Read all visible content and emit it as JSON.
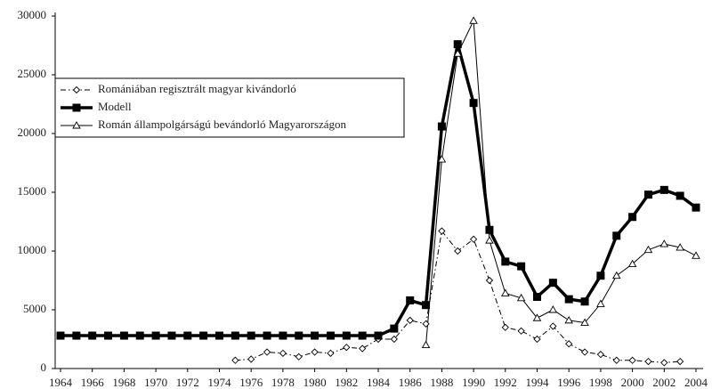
{
  "chart_data": {
    "type": "line",
    "x": [
      1964,
      1965,
      1966,
      1967,
      1968,
      1969,
      1970,
      1971,
      1972,
      1973,
      1974,
      1975,
      1976,
      1977,
      1978,
      1979,
      1980,
      1981,
      1982,
      1983,
      1984,
      1985,
      1986,
      1987,
      1988,
      1989,
      1990,
      1991,
      1992,
      1993,
      1994,
      1995,
      1996,
      1997,
      1998,
      1999,
      2000,
      2001,
      2002,
      2003,
      2004
    ],
    "xticks": [
      1964,
      1966,
      1968,
      1970,
      1972,
      1974,
      1976,
      1978,
      1980,
      1982,
      1984,
      1986,
      1988,
      1990,
      1992,
      1994,
      1996,
      1998,
      2000,
      2002,
      2004
    ],
    "xlim": [
      1964,
      2004
    ],
    "ylim": [
      0,
      30000
    ],
    "yticks": [
      0,
      5000,
      10000,
      15000,
      20000,
      25000,
      30000
    ],
    "legend": "upper left",
    "series": [
      {
        "name": "Romániában regisztrált magyar kivándorló",
        "color": "#000000",
        "marker": "diamond",
        "dash": "dashdot",
        "line_width": 1,
        "values": [
          null,
          null,
          null,
          null,
          null,
          null,
          null,
          null,
          null,
          null,
          null,
          700,
          800,
          1400,
          1300,
          1000,
          1400,
          1300,
          1800,
          1700,
          2500,
          2500,
          4100,
          3800,
          11700,
          10000,
          11000,
          7500,
          3500,
          3200,
          2500,
          3600,
          2100,
          1400,
          1200,
          700,
          700,
          600,
          500,
          600,
          null
        ]
      },
      {
        "name": "Modell",
        "color": "#000000",
        "marker": "square",
        "dash": "solid",
        "line_width": 3.5,
        "values": [
          2800,
          2800,
          2800,
          2800,
          2800,
          2800,
          2800,
          2800,
          2800,
          2800,
          2800,
          2800,
          2800,
          2800,
          2800,
          2800,
          2800,
          2800,
          2800,
          2800,
          2800,
          3400,
          5800,
          5400,
          20600,
          27600,
          22600,
          11800,
          9100,
          8700,
          6100,
          7300,
          5900,
          5700,
          7900,
          11300,
          12900,
          14800,
          15200,
          14700,
          13700
        ]
      },
      {
        "name": "Román állampolgárságú bevándorló Magyarországon",
        "color": "#000000",
        "marker": "triangle",
        "dash": "solid",
        "line_width": 1,
        "values": [
          null,
          null,
          null,
          null,
          null,
          null,
          null,
          null,
          null,
          null,
          null,
          null,
          null,
          null,
          null,
          null,
          null,
          null,
          null,
          null,
          null,
          null,
          null,
          2000,
          17800,
          26800,
          29600,
          10900,
          6400,
          6000,
          4300,
          5000,
          4100,
          3900,
          5500,
          7900,
          8900,
          10100,
          10600,
          10300,
          9600
        ]
      }
    ]
  }
}
